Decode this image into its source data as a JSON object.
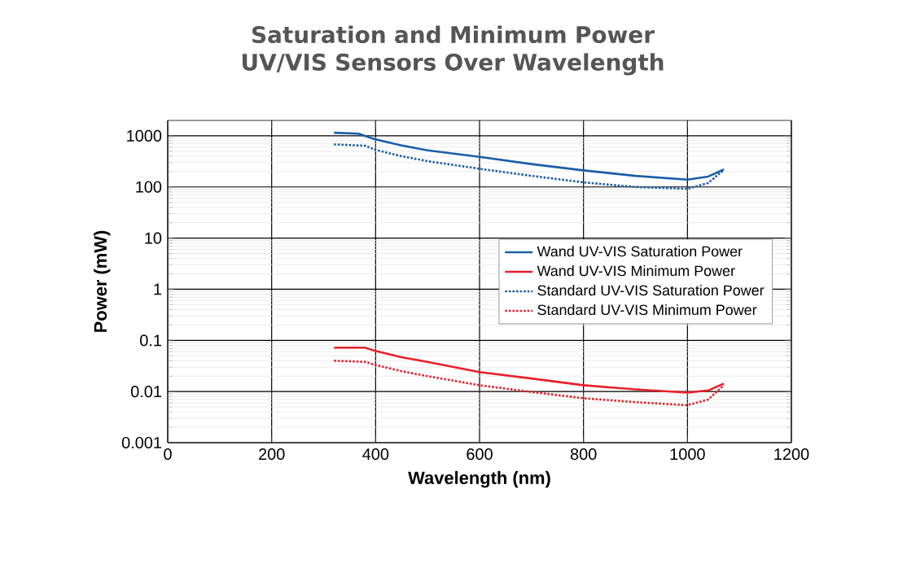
{
  "chart_data": {
    "type": "line",
    "title": "Saturation and Minimum Power\nUV/VIS Sensors Over Wavelength",
    "xlabel": "Wavelength (nm)",
    "ylabel": "Power (mW)",
    "log": "y",
    "grid": true,
    "legend": "right",
    "xlim": [
      0,
      1200
    ],
    "xticks": [
      0,
      200,
      400,
      600,
      800,
      1000,
      1200
    ],
    "ylim": [
      0.001,
      2000
    ],
    "yticks": [
      {
        "value": 0.001,
        "label": "0.001"
      },
      {
        "value": 0.01,
        "label": "0.01"
      },
      {
        "value": 0.1,
        "label": "0.1"
      },
      {
        "value": 1,
        "label": "1"
      },
      {
        "value": 10,
        "label": "10"
      },
      {
        "value": 100,
        "label": "100"
      },
      {
        "value": 1000,
        "label": "1000"
      }
    ],
    "series": [
      {
        "name": "Wand UV-VIS Saturation Power",
        "color": "#1a5ea8",
        "line_style": "solid",
        "x": [
          320,
          367,
          398,
          450,
          500,
          600,
          700,
          800,
          900,
          1000,
          1040,
          1070
        ],
        "values": [
          1150,
          1100,
          860,
          650,
          520,
          387,
          280,
          211,
          165,
          139,
          160,
          220
        ]
      },
      {
        "name": "Wand UV-VIS Minimum Power",
        "color": "#e8202a",
        "line_style": "solid",
        "x": [
          320,
          380,
          400,
          450,
          500,
          600,
          700,
          800,
          900,
          1000,
          1040,
          1070
        ],
        "values": [
          0.072,
          0.072,
          0.062,
          0.047,
          0.038,
          0.024,
          0.018,
          0.0133,
          0.011,
          0.0095,
          0.0105,
          0.0143
        ]
      },
      {
        "name": "Standard UV-VIS Saturation Power",
        "color": "#1a5ea8",
        "line_style": "dotted",
        "x": [
          320,
          380,
          400,
          450,
          500,
          600,
          700,
          800,
          900,
          1000,
          1040,
          1070
        ],
        "values": [
          680,
          640,
          530,
          400,
          320,
          227,
          165,
          123,
          100,
          92,
          120,
          215
        ]
      },
      {
        "name": "Standard UV-VIS Minimum Power",
        "color": "#e8202a",
        "line_style": "dotted",
        "x": [
          320,
          380,
          400,
          450,
          500,
          600,
          700,
          800,
          900,
          1000,
          1040,
          1070
        ],
        "values": [
          0.04,
          0.038,
          0.033,
          0.025,
          0.02,
          0.0133,
          0.0098,
          0.0074,
          0.0062,
          0.0054,
          0.007,
          0.0133
        ]
      }
    ]
  }
}
